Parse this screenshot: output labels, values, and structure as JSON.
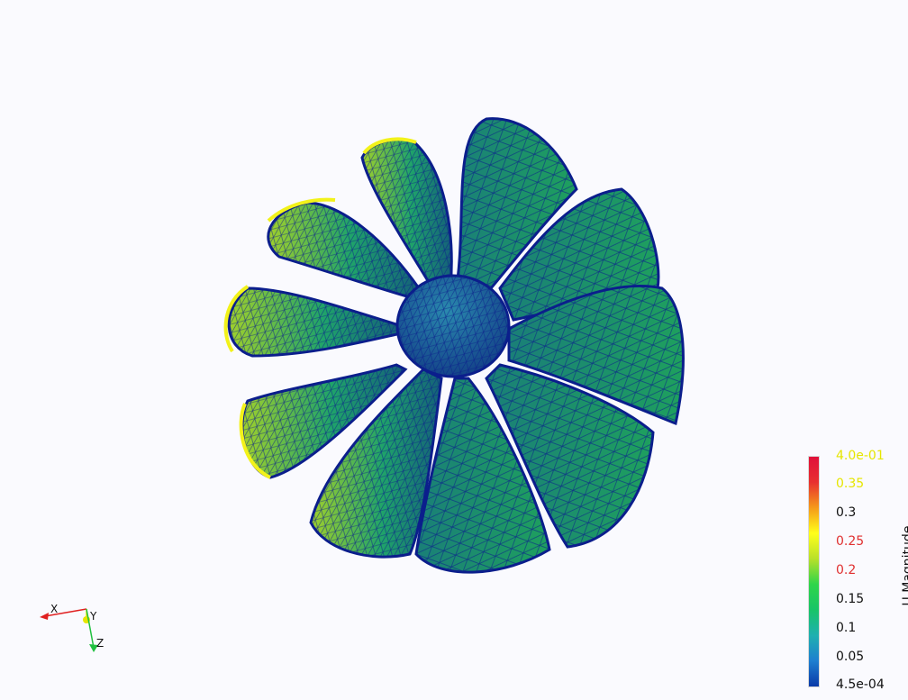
{
  "scalar_bar": {
    "title": "U Magnitude",
    "max_label": "4.0e-01",
    "min_label": "4.5e-04",
    "ticks": [
      "0.35",
      "0.3",
      "0.25",
      "0.2",
      "0.15",
      "0.1",
      "0.05"
    ],
    "tick_values": [
      0.35,
      0.3,
      0.25,
      0.2,
      0.15,
      0.1,
      0.05
    ],
    "range": [
      0.00045,
      0.4
    ],
    "colormap": [
      "#0a3aa8",
      "#1e7fd0",
      "#1fb0b0",
      "#18c468",
      "#2fd54a",
      "#b8e02a",
      "#ffff1a",
      "#f59a1a",
      "#e83030",
      "#e0103a"
    ],
    "max_label_color": "#e6e600",
    "tick_label_colors": [
      "#e6e600",
      "#111111",
      "#e03030",
      "#e03030",
      "#111111",
      "#111111",
      "#111111"
    ],
    "min_label_color": "#111111"
  },
  "orientation_axes": {
    "x_label": "X",
    "y_label": "Y",
    "z_label": "Z",
    "x_color": "#e02020",
    "y_color": "#e6e600",
    "z_color": "#20c040"
  },
  "mesh_colors": {
    "hub": "#1f6fa0",
    "edge": "#0b1e8c",
    "blade_base": "#1a9e6a",
    "blade_tip": "#b9e02a",
    "blade_outline": "#f2f21a"
  }
}
